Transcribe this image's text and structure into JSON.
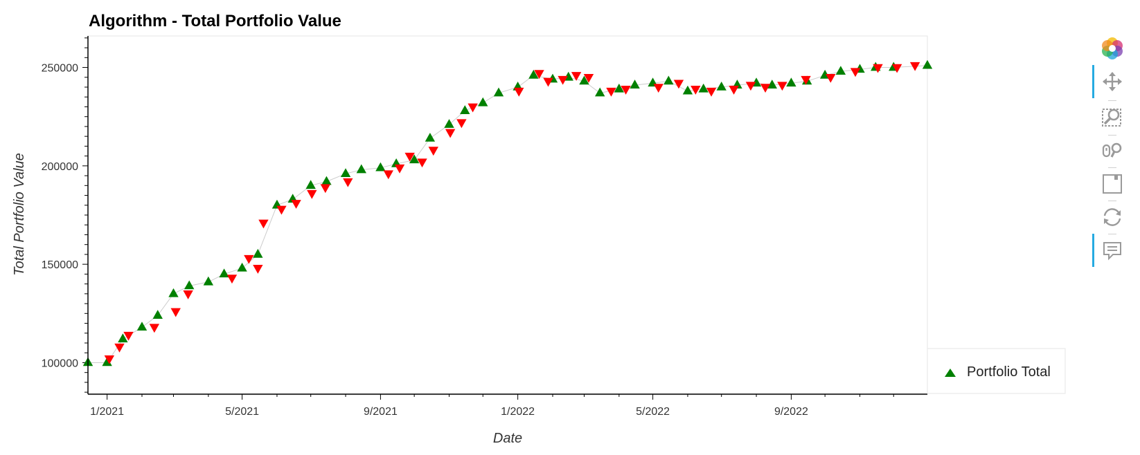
{
  "chart_data": {
    "type": "scatter",
    "title": "Algorithm - Total Portfolio Value",
    "xlabel": "Date",
    "ylabel": "Total Portfolio Value",
    "x_ticks": [
      "1/2021",
      "5/2021",
      "9/2021",
      "1/2022",
      "5/2022",
      "9/2022"
    ],
    "y_ticks": [
      100000,
      150000,
      200000,
      250000
    ],
    "xlim": [
      "2020-12-15",
      "2022-12-31"
    ],
    "ylim": [
      84000,
      266000
    ],
    "legend": {
      "position": "right",
      "entries": [
        {
          "label": "Portfolio Total",
          "marker": "triangle",
          "color": "#008000"
        }
      ]
    },
    "series": [
      {
        "name": "Portfolio Total",
        "marker": "triangle",
        "color": "#008000",
        "x": [
          "2020-12-15",
          "2021-01-01",
          "2021-01-15",
          "2021-02-01",
          "2021-02-15",
          "2021-03-01",
          "2021-03-15",
          "2021-04-01",
          "2021-04-15",
          "2021-05-01",
          "2021-05-15",
          "2021-06-01",
          "2021-06-15",
          "2021-07-01",
          "2021-07-15",
          "2021-08-01",
          "2021-08-15",
          "2021-09-01",
          "2021-09-15",
          "2021-10-01",
          "2021-10-15",
          "2021-11-01",
          "2021-11-15",
          "2021-12-01",
          "2021-12-15",
          "2022-01-01",
          "2022-01-15",
          "2022-02-01",
          "2022-02-15",
          "2022-03-01",
          "2022-03-15",
          "2022-04-01",
          "2022-04-15",
          "2022-05-01",
          "2022-05-15",
          "2022-06-01",
          "2022-06-15",
          "2022-07-01",
          "2022-07-15",
          "2022-08-01",
          "2022-08-15",
          "2022-09-01",
          "2022-09-15",
          "2022-10-01",
          "2022-10-15",
          "2022-11-01",
          "2022-11-15",
          "2022-12-01",
          "2022-12-31"
        ],
        "y": [
          100000,
          100000,
          112000,
          118000,
          124000,
          135000,
          139000,
          141000,
          145000,
          148000,
          155000,
          180000,
          183000,
          190000,
          192000,
          196000,
          198000,
          199000,
          201000,
          203000,
          214000,
          221000,
          228000,
          232000,
          237000,
          240000,
          246000,
          244000,
          245000,
          243000,
          237000,
          239000,
          241000,
          242000,
          243000,
          238000,
          239000,
          240000,
          241000,
          242000,
          241000,
          242000,
          243000,
          246000,
          248000,
          249000,
          250000,
          250000,
          251000
        ]
      },
      {
        "name": "",
        "marker": "inverted-triangle",
        "color": "#ff0000",
        "x": [
          "2021-01-03",
          "2021-01-12",
          "2021-01-20",
          "2021-02-12",
          "2021-03-03",
          "2021-03-14",
          "2021-04-22",
          "2021-05-07",
          "2021-05-15",
          "2021-05-20",
          "2021-06-05",
          "2021-06-18",
          "2021-07-02",
          "2021-07-14",
          "2021-08-03",
          "2021-09-08",
          "2021-09-18",
          "2021-09-27",
          "2021-10-08",
          "2021-10-18",
          "2021-11-02",
          "2021-11-12",
          "2021-11-22",
          "2022-01-02",
          "2022-01-20",
          "2022-01-28",
          "2022-02-10",
          "2022-02-22",
          "2022-03-05",
          "2022-03-25",
          "2022-04-07",
          "2022-05-06",
          "2022-05-24",
          "2022-06-08",
          "2022-06-22",
          "2022-07-12",
          "2022-07-27",
          "2022-08-09",
          "2022-08-24",
          "2022-09-14",
          "2022-10-06",
          "2022-10-28",
          "2022-11-17",
          "2022-12-04",
          "2022-12-20"
        ],
        "y": [
          102000,
          108000,
          114000,
          118000,
          126000,
          135000,
          143000,
          153000,
          148000,
          171000,
          178000,
          181000,
          186000,
          189000,
          192000,
          196000,
          199000,
          205000,
          202000,
          208000,
          217000,
          222000,
          230000,
          238000,
          247000,
          243000,
          244000,
          246000,
          245000,
          238000,
          239000,
          240000,
          242000,
          239000,
          238000,
          239000,
          241000,
          240000,
          241000,
          244000,
          245000,
          248000,
          250000,
          250000,
          251000
        ]
      }
    ]
  },
  "toolbar": {
    "icons": [
      "bokeh-logo-icon",
      "pan-icon",
      "box-zoom-icon",
      "wheel-zoom-icon",
      "save-icon",
      "reset-icon",
      "hover-icon"
    ],
    "active": [
      "pan-icon",
      "hover-icon"
    ]
  }
}
